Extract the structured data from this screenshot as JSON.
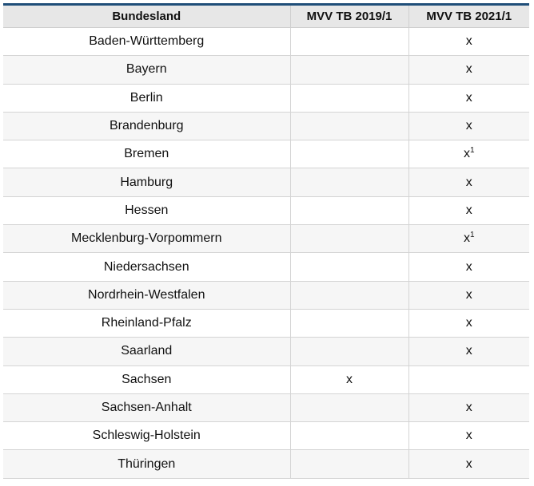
{
  "table": {
    "headers": [
      "Bundesland",
      "MVV TB 2019/1",
      "MVV TB 2021/1"
    ],
    "rows": [
      {
        "state": "Baden-Württemberg",
        "tb2019": "",
        "tb2021": "x",
        "note2021": ""
      },
      {
        "state": "Bayern",
        "tb2019": "",
        "tb2021": "x",
        "note2021": ""
      },
      {
        "state": "Berlin",
        "tb2019": "",
        "tb2021": "x",
        "note2021": ""
      },
      {
        "state": "Brandenburg",
        "tb2019": "",
        "tb2021": "x",
        "note2021": ""
      },
      {
        "state": "Bremen",
        "tb2019": "",
        "tb2021": "x",
        "note2021": "1"
      },
      {
        "state": "Hamburg",
        "tb2019": "",
        "tb2021": "x",
        "note2021": ""
      },
      {
        "state": "Hessen",
        "tb2019": "",
        "tb2021": "x",
        "note2021": ""
      },
      {
        "state": "Mecklenburg-Vorpommern",
        "tb2019": "",
        "tb2021": "x",
        "note2021": "1"
      },
      {
        "state": "Niedersachsen",
        "tb2019": "",
        "tb2021": "x",
        "note2021": ""
      },
      {
        "state": "Nordrhein-Westfalen",
        "tb2019": "",
        "tb2021": "x",
        "note2021": ""
      },
      {
        "state": "Rheinland-Pfalz",
        "tb2019": "",
        "tb2021": "x",
        "note2021": ""
      },
      {
        "state": "Saarland",
        "tb2019": "",
        "tb2021": "x",
        "note2021": ""
      },
      {
        "state": "Sachsen",
        "tb2019": "x",
        "tb2021": "",
        "note2021": ""
      },
      {
        "state": "Sachsen-Anhalt",
        "tb2019": "",
        "tb2021": "x",
        "note2021": ""
      },
      {
        "state": "Schleswig-Holstein",
        "tb2019": "",
        "tb2021": "x",
        "note2021": ""
      },
      {
        "state": "Thüringen",
        "tb2019": "",
        "tb2021": "x",
        "note2021": ""
      }
    ]
  },
  "colors": {
    "accent_rule": "#1f4e79",
    "header_bg": "#e7e7e7",
    "alt_row_bg": "#f6f6f6",
    "grid_line": "#d4d4d4"
  }
}
